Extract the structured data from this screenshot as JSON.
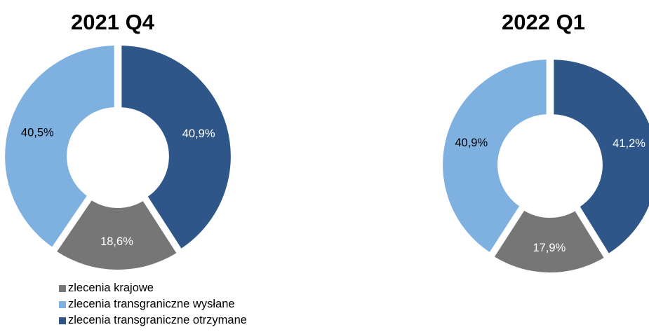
{
  "chart_data": [
    {
      "type": "donut",
      "title": "2021 Q4",
      "slices": [
        {
          "label": "zlecenia transgraniczne otrzymane",
          "value": 40.9,
          "display": "40,9%",
          "color": "#2f5689"
        },
        {
          "label": "zlecenia krajowe",
          "value": 18.6,
          "display": "18,6%",
          "color": "#767676"
        },
        {
          "label": "zlecenia transgraniczne wysłane",
          "value": 40.5,
          "display": "40,5%",
          "color": "#7eb0e0"
        }
      ]
    },
    {
      "type": "donut",
      "title": "2022 Q1",
      "slices": [
        {
          "label": "zlecenia transgraniczne otrzymane",
          "value": 41.2,
          "display": "41,2%",
          "color": "#2f5689"
        },
        {
          "label": "zlecenia krajowe",
          "value": 17.9,
          "display": "17,9%",
          "color": "#767676"
        },
        {
          "label": "zlecenia transgraniczne wysłane",
          "value": 40.9,
          "display": "40,9%",
          "color": "#7eb0e0"
        }
      ]
    }
  ],
  "legend": [
    {
      "label": "zlecenia krajowe",
      "color": "#767676"
    },
    {
      "label": "zlecenia transgraniczne wysłane",
      "color": "#7eb0e0"
    },
    {
      "label": "zlecenia transgraniczne otrzymane",
      "color": "#2f5689"
    }
  ]
}
